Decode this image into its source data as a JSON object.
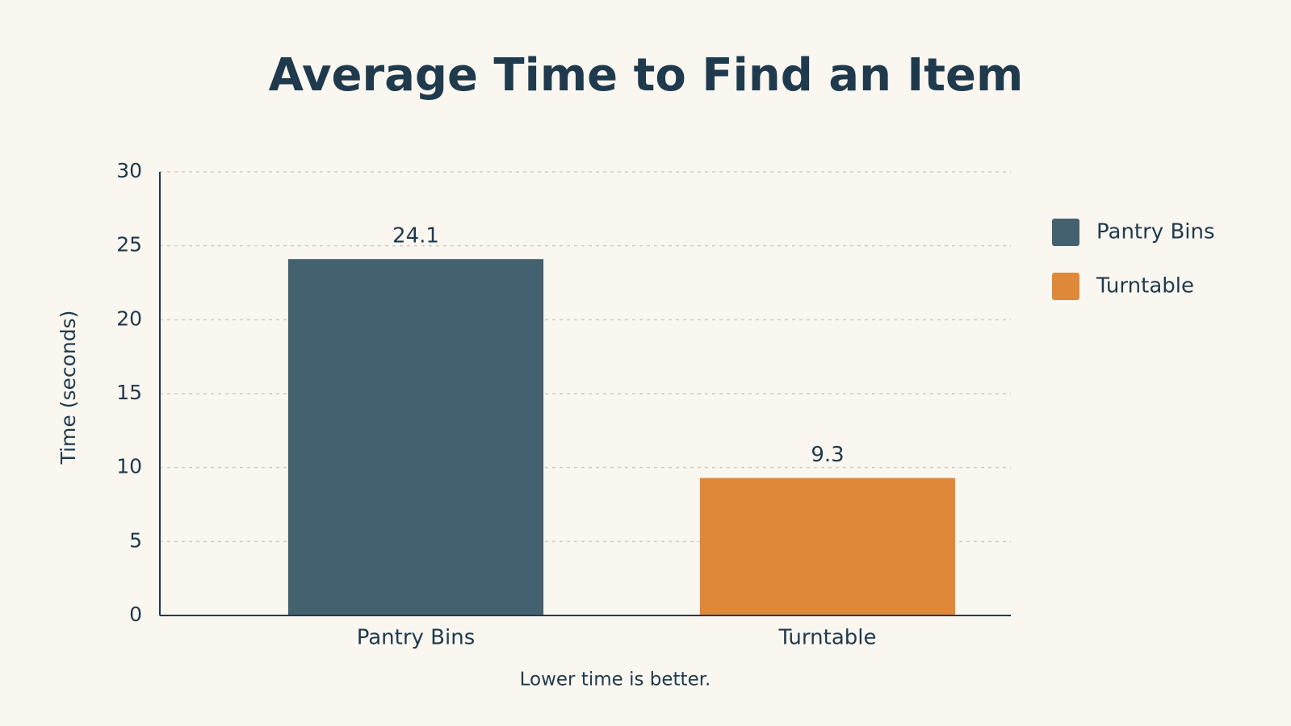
{
  "chart_data": {
    "type": "bar",
    "title": "Average Time to Find an Item",
    "y_label": "Time (seconds)",
    "categories": [
      "Pantry Bins",
      "Turntable"
    ],
    "values": [
      24.1,
      9.3
    ],
    "colors": [
      "#44616f",
      "#e0883a"
    ],
    "ylim": [
      0,
      30
    ],
    "yticks": [
      0,
      5,
      10,
      15,
      20,
      25,
      30
    ],
    "grid": true,
    "legend": "right",
    "annotation": "Lower time is better."
  }
}
